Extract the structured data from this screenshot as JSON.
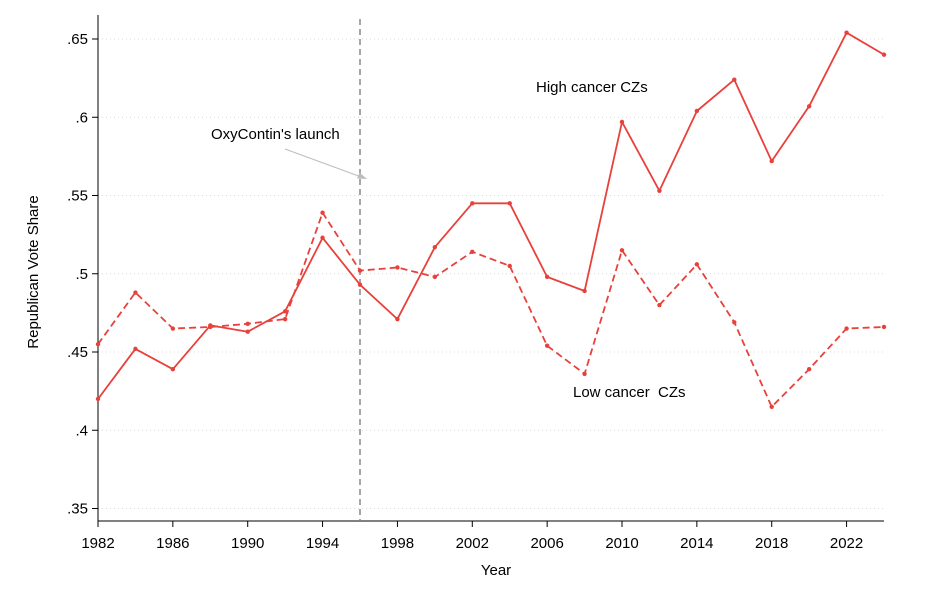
{
  "chart_data": {
    "type": "line",
    "title": "",
    "xlabel": "Year",
    "ylabel": "Republican Vote Share",
    "xlim": [
      1982,
      2024
    ],
    "ylim": [
      0.35,
      0.65
    ],
    "x_ticks": [
      1982,
      1986,
      1990,
      1994,
      1998,
      2002,
      2006,
      2010,
      2014,
      2018,
      2022
    ],
    "x_tick_labels": [
      "1982",
      "1986",
      "1990",
      "1994",
      "1998",
      "2002",
      "2006",
      "2010",
      "2014",
      "2018",
      "2022"
    ],
    "y_ticks": [
      0.35,
      0.4,
      0.45,
      0.5,
      0.55,
      0.6,
      0.65
    ],
    "y_tick_labels": [
      ".35",
      ".4",
      ".45",
      ".5",
      ".55",
      ".6",
      ".65"
    ],
    "grid": "horizontal dotted",
    "x": [
      1982,
      1984,
      1986,
      1988,
      1990,
      1992,
      1994,
      1996,
      1998,
      2000,
      2002,
      2004,
      2006,
      2008,
      2010,
      2012,
      2014,
      2016,
      2018,
      2020,
      2022,
      2024
    ],
    "series": [
      {
        "name": "High cancer CZs",
        "style": "solid",
        "color": "#e8413c",
        "values": [
          0.42,
          0.452,
          0.439,
          0.467,
          0.463,
          0.476,
          0.523,
          0.493,
          0.471,
          0.517,
          0.545,
          0.545,
          0.498,
          0.489,
          0.597,
          0.553,
          0.604,
          0.624,
          0.572,
          0.607,
          0.654,
          0.64
        ]
      },
      {
        "name": "Low cancer  CZs",
        "style": "dashed",
        "color": "#e8413c",
        "values": [
          0.455,
          0.488,
          0.465,
          0.466,
          0.468,
          0.471,
          0.539,
          0.502,
          0.504,
          0.498,
          0.514,
          0.505,
          0.454,
          0.436,
          0.515,
          0.48,
          0.506,
          0.469,
          0.415,
          0.439,
          0.465,
          0.466
        ]
      }
    ],
    "vline": {
      "x": 1996,
      "color": "#888888",
      "style": "dashed"
    },
    "annotations": {
      "launch_label": "OxyContin's launch",
      "high_label": "High cancer CZs",
      "low_label": "Low cancer  CZs"
    }
  }
}
